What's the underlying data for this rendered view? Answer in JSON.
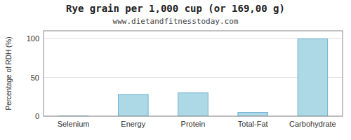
{
  "chart_data": {
    "type": "bar",
    "title": "Rye grain per 1,000 cup (or 169,00 g)",
    "subtitle": "www.dietandfitnesstoday.com",
    "ylabel": "Percentage of RDH (%)",
    "categories": [
      "Selenium",
      "Energy",
      "Protein",
      "Total-Fat",
      "Carbohydrate"
    ],
    "values": [
      0.5,
      28,
      30,
      5,
      99.5
    ],
    "color": "#add8e6",
    "ylim": [
      0,
      110
    ],
    "yticks": [
      0,
      50,
      100
    ],
    "grid": true
  }
}
